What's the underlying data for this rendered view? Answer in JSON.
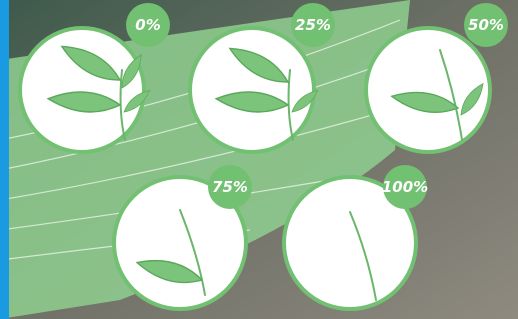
{
  "stages": [
    {
      "label": "0%"
    },
    {
      "label": "25%"
    },
    {
      "label": "50%"
    },
    {
      "label": "75%"
    },
    {
      "label": "100%"
    }
  ]
}
